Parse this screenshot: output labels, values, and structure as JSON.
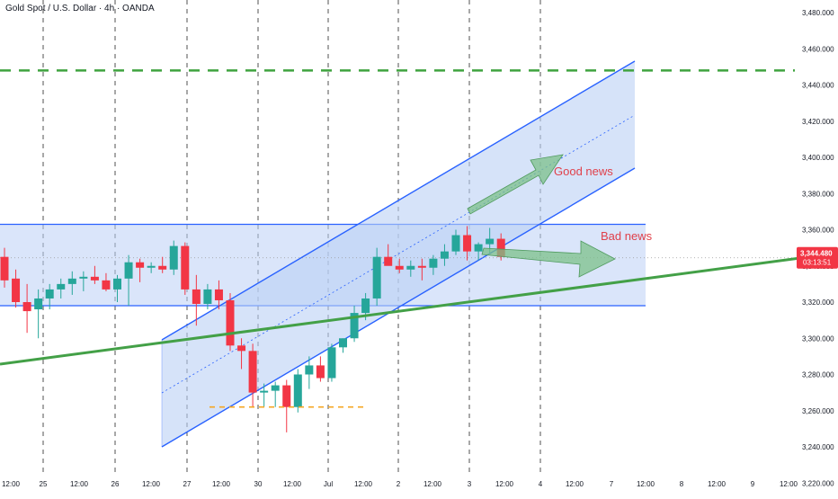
{
  "header": {
    "title": "Gold Spot / U.S. Dollar · 4h · OANDA"
  },
  "price_tag": {
    "price": "3,344.480",
    "countdown": "03:13:51"
  },
  "annotations": {
    "good_news": "Good news",
    "bad_news": "Bad news"
  },
  "colors": {
    "up": "#26a69a",
    "down": "#f23645",
    "channel": "#2962ff",
    "channel_fill": "#bbd0f5",
    "trendline": "#43a047",
    "resistance": "#3fa33f",
    "support": "#f5a623",
    "price_tag": "#f23645"
  },
  "chart_data": {
    "type": "candlestick",
    "title": "Gold Spot / U.S. Dollar · 4h · OANDA",
    "xlabel": "",
    "ylabel": "",
    "ylim": [
      3210,
      3495
    ],
    "y_ticks": [
      "3,220.000",
      "3,240.000",
      "3,260.000",
      "3,280.000",
      "3,300.000",
      "3,320.000",
      "3,340.000",
      "3,360.000",
      "3,380.000",
      "3,400.000",
      "3,420.000",
      "3,440.000",
      "3,460.000",
      "3,480.000"
    ],
    "x_ticks": [
      "12:00",
      "25",
      "12:00",
      "26",
      "12:00",
      "27",
      "12:00",
      "30",
      "12:00",
      "Jul",
      "12:00",
      "2",
      "12:00",
      "3",
      "12:00",
      "4",
      "12:00",
      "7",
      "12:00",
      "8",
      "12:00",
      "9",
      "12:00"
    ],
    "candles": [
      {
        "o": 3345,
        "h": 3350,
        "l": 3328,
        "c": 3332
      },
      {
        "o": 3333,
        "h": 3338,
        "l": 3317,
        "c": 3320
      },
      {
        "o": 3320,
        "h": 3330,
        "l": 3303,
        "c": 3315
      },
      {
        "o": 3316,
        "h": 3327,
        "l": 3300,
        "c": 3322
      },
      {
        "o": 3322,
        "h": 3330,
        "l": 3316,
        "c": 3327
      },
      {
        "o": 3327,
        "h": 3333,
        "l": 3322,
        "c": 3330
      },
      {
        "o": 3330,
        "h": 3337,
        "l": 3324,
        "c": 3333
      },
      {
        "o": 3333,
        "h": 3337,
        "l": 3326,
        "c": 3334
      },
      {
        "o": 3334,
        "h": 3340,
        "l": 3330,
        "c": 3332
      },
      {
        "o": 3332,
        "h": 3336,
        "l": 3326,
        "c": 3327
      },
      {
        "o": 3327,
        "h": 3335,
        "l": 3320,
        "c": 3333
      },
      {
        "o": 3333,
        "h": 3346,
        "l": 3318,
        "c": 3342
      },
      {
        "o": 3342,
        "h": 3344,
        "l": 3331,
        "c": 3339
      },
      {
        "o": 3339,
        "h": 3342,
        "l": 3336,
        "c": 3340
      },
      {
        "o": 3340,
        "h": 3345,
        "l": 3336,
        "c": 3338
      },
      {
        "o": 3338,
        "h": 3354,
        "l": 3335,
        "c": 3351
      },
      {
        "o": 3351,
        "h": 3353,
        "l": 3324,
        "c": 3327
      },
      {
        "o": 3327,
        "h": 3335,
        "l": 3307,
        "c": 3319
      },
      {
        "o": 3319,
        "h": 3330,
        "l": 3316,
        "c": 3327
      },
      {
        "o": 3327,
        "h": 3332,
        "l": 3316,
        "c": 3321
      },
      {
        "o": 3321,
        "h": 3325,
        "l": 3293,
        "c": 3296
      },
      {
        "o": 3296,
        "h": 3300,
        "l": 3283,
        "c": 3293
      },
      {
        "o": 3293,
        "h": 3297,
        "l": 3262,
        "c": 3270
      },
      {
        "o": 3270,
        "h": 3275,
        "l": 3262,
        "c": 3271
      },
      {
        "o": 3271,
        "h": 3276,
        "l": 3262,
        "c": 3274
      },
      {
        "o": 3274,
        "h": 3277,
        "l": 3248,
        "c": 3262
      },
      {
        "o": 3262,
        "h": 3283,
        "l": 3259,
        "c": 3280
      },
      {
        "o": 3280,
        "h": 3290,
        "l": 3272,
        "c": 3285
      },
      {
        "o": 3285,
        "h": 3290,
        "l": 3276,
        "c": 3278
      },
      {
        "o": 3278,
        "h": 3297,
        "l": 3276,
        "c": 3295
      },
      {
        "o": 3295,
        "h": 3300,
        "l": 3292,
        "c": 3300
      },
      {
        "o": 3300,
        "h": 3318,
        "l": 3298,
        "c": 3314
      },
      {
        "o": 3314,
        "h": 3325,
        "l": 3310,
        "c": 3322
      },
      {
        "o": 3322,
        "h": 3350,
        "l": 3318,
        "c": 3345
      },
      {
        "o": 3345,
        "h": 3352,
        "l": 3342,
        "c": 3340
      },
      {
        "o": 3340,
        "h": 3344,
        "l": 3336,
        "c": 3338
      },
      {
        "o": 3338,
        "h": 3343,
        "l": 3334,
        "c": 3340
      },
      {
        "o": 3340,
        "h": 3344,
        "l": 3332,
        "c": 3339
      },
      {
        "o": 3339,
        "h": 3346,
        "l": 3335,
        "c": 3344
      },
      {
        "o": 3344,
        "h": 3352,
        "l": 3340,
        "c": 3348
      },
      {
        "o": 3348,
        "h": 3360,
        "l": 3346,
        "c": 3357
      },
      {
        "o": 3357,
        "h": 3362,
        "l": 3343,
        "c": 3348
      },
      {
        "o": 3348,
        "h": 3353,
        "l": 3343,
        "c": 3352
      },
      {
        "o": 3352,
        "h": 3361,
        "l": 3347,
        "c": 3355
      },
      {
        "o": 3355,
        "h": 3358,
        "l": 3343,
        "c": 3345
      }
    ],
    "horizontal_levels": [
      {
        "name": "resistance-dashed",
        "price": 3448
      },
      {
        "name": "support-dashed",
        "price": 3262
      }
    ],
    "box": {
      "top": 3363,
      "bottom": 3318
    },
    "last_price": 3344.48
  }
}
